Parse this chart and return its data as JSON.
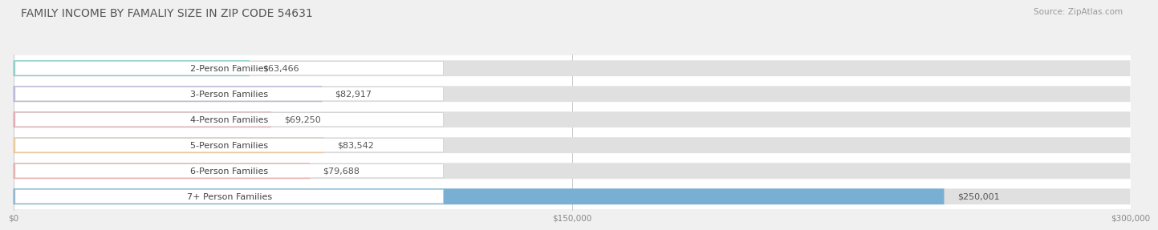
{
  "title": "FAMILY INCOME BY FAMALIY SIZE IN ZIP CODE 54631",
  "source": "Source: ZipAtlas.com",
  "categories": [
    "2-Person Families",
    "3-Person Families",
    "4-Person Families",
    "5-Person Families",
    "6-Person Families",
    "7+ Person Families"
  ],
  "values": [
    63466,
    82917,
    69250,
    83542,
    79688,
    250001
  ],
  "bar_colors": [
    "#7dcfcb",
    "#b0b3de",
    "#f0a0b0",
    "#f5c98a",
    "#f0a8a8",
    "#7aafd4"
  ],
  "value_labels": [
    "$63,466",
    "$82,917",
    "$69,250",
    "$83,542",
    "$79,688",
    "$250,001"
  ],
  "xlim": [
    0,
    300000
  ],
  "xticks": [
    0,
    150000,
    300000
  ],
  "xtick_labels": [
    "$0",
    "$150,000",
    "$300,000"
  ],
  "background_color": "#f0f0f0",
  "row_bg_color": "#ffffff",
  "row_sep_color": "#d8d8d8",
  "title_fontsize": 10,
  "source_fontsize": 7.5,
  "label_fontsize": 8,
  "value_fontsize": 8
}
